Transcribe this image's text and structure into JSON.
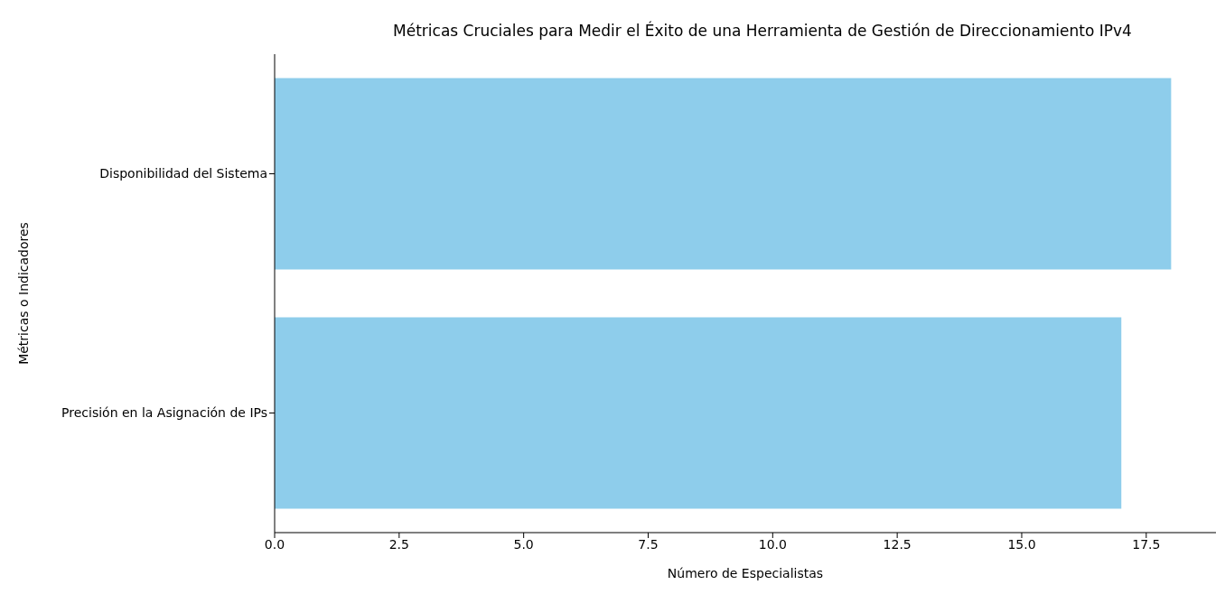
{
  "chart_data": {
    "type": "bar",
    "orientation": "horizontal",
    "title": "Métricas Cruciales para Medir el Éxito de una Herramienta de Gestión de Direccionamiento IPv4",
    "xlabel": "Número de Especialistas",
    "ylabel": "Métricas o Indicadores",
    "categories": [
      "Disponibilidad del Sistema",
      "Precisión en la Asignación de IPs"
    ],
    "values": [
      18,
      17
    ],
    "color": "#8ecdeb",
    "xlim": [
      0,
      18.9
    ],
    "xticks": [
      {
        "value": 0,
        "label": "0.0"
      },
      {
        "value": 2.5,
        "label": "2.5"
      },
      {
        "value": 5,
        "label": "5.0"
      },
      {
        "value": 7.5,
        "label": "7.5"
      },
      {
        "value": 10,
        "label": "10.0"
      },
      {
        "value": 12.5,
        "label": "12.5"
      },
      {
        "value": 15,
        "label": "15.0"
      },
      {
        "value": 17.5,
        "label": "17.5"
      }
    ],
    "grid": false,
    "legend": false
  }
}
